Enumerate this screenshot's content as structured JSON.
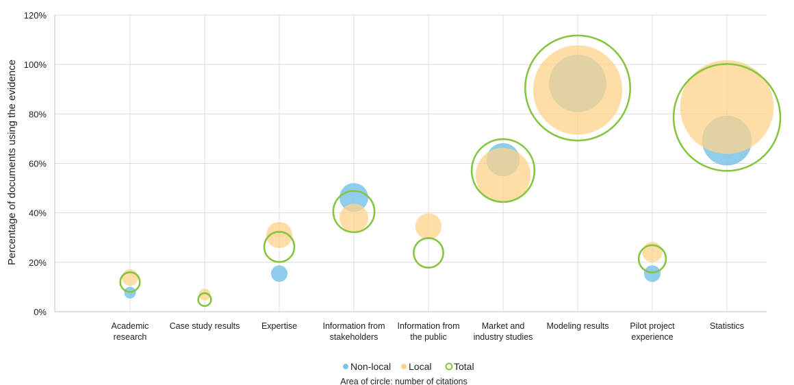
{
  "chart_data": {
    "type": "bubble",
    "ylabel": "Percentage of documents using the evidence",
    "xlabel": "",
    "ylim": [
      0,
      120
    ],
    "yticks": [
      "0%",
      "20%",
      "40%",
      "60%",
      "80%",
      "100%",
      "120%"
    ],
    "categories": [
      [
        "Academic",
        "research"
      ],
      [
        "Case study results"
      ],
      [
        "Expertise"
      ],
      [
        "Information from",
        "stakeholders"
      ],
      [
        "Information from",
        "the public"
      ],
      [
        "Market and",
        "industry studies"
      ],
      [
        "Modeling results"
      ],
      [
        "Pilot project",
        "experience"
      ],
      [
        "Statistics"
      ]
    ],
    "series": [
      {
        "name": "Non-local",
        "color": "#7cc4ea",
        "style": "filled",
        "values": [
          7.7,
          0,
          15.4,
          46.2,
          0,
          61.5,
          92.3,
          15.4,
          69.2
        ],
        "sizes": [
          0.5,
          0,
          1,
          3,
          0,
          4,
          12,
          1,
          9
        ]
      },
      {
        "name": "Local",
        "color": "#fdd28a",
        "style": "filled",
        "values": [
          13.8,
          6.9,
          31.0,
          37.9,
          34.5,
          55.2,
          89.7,
          24.1,
          82.8
        ],
        "sizes": [
          1,
          0.5,
          2.5,
          3,
          2.5,
          11,
          29,
          1.5,
          32
        ]
      },
      {
        "name": "Total",
        "color": "#86c540",
        "style": "outline",
        "values": [
          12,
          4.9,
          26.2,
          40.5,
          23.8,
          57.1,
          90.5,
          21.4,
          78.6
        ],
        "sizes": [
          1.4,
          0.6,
          3.3,
          6.2,
          3.2,
          14.4,
          40.2,
          2.7,
          41.6
        ]
      }
    ],
    "legend_position": "bottom",
    "grid": true,
    "note": "Area of circle: number of citations"
  }
}
